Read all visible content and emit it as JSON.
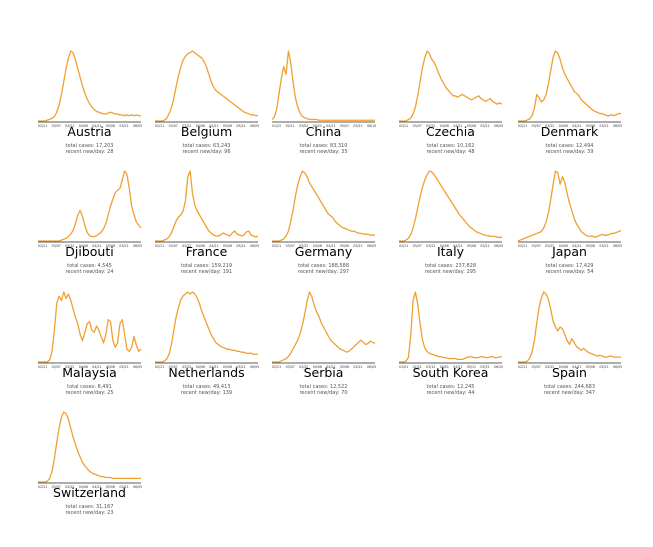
{
  "accent_color": "#f0a030",
  "chart_data": [
    {
      "type": "line",
      "title": "Austria",
      "total_cases_text": "total cases: 17,203",
      "recent_text": "recent new/day: 28",
      "x_ticks": [
        "02/21",
        "03/07",
        "03/22",
        "04/06",
        "04/21",
        "05/06",
        "05/21",
        "06/05"
      ],
      "values": [
        0,
        0,
        0,
        0,
        1,
        2,
        3,
        5,
        10,
        18,
        30,
        45,
        60,
        72,
        80,
        78,
        70,
        60,
        50,
        40,
        32,
        25,
        20,
        16,
        13,
        11,
        10,
        9,
        8,
        8,
        9,
        10,
        9,
        8,
        8,
        7,
        7,
        6,
        7,
        6,
        7,
        6,
        7,
        6,
        6
      ]
    },
    {
      "type": "line",
      "title": "Belgium",
      "total_cases_text": "total cases: 63,243",
      "recent_text": "recent new/day: 96",
      "x_ticks": [
        "02/21",
        "03/07",
        "03/22",
        "04/06",
        "04/21",
        "05/06",
        "05/21",
        "06/05"
      ],
      "values": [
        0,
        0,
        0,
        0,
        1,
        3,
        8,
        15,
        25,
        38,
        50,
        60,
        68,
        72,
        75,
        76,
        78,
        76,
        74,
        72,
        70,
        66,
        60,
        52,
        44,
        38,
        34,
        32,
        30,
        28,
        26,
        24,
        22,
        20,
        18,
        16,
        14,
        12,
        10,
        9,
        8,
        7,
        7,
        6,
        6
      ]
    },
    {
      "type": "line",
      "title": "China",
      "total_cases_text": "total cases: 83,310",
      "recent_text": "recent new/day: 35",
      "x_ticks": [
        "01/22",
        "02/11",
        "03/02",
        "03/22",
        "04/11",
        "05/01",
        "05/21",
        "06/10"
      ],
      "values": [
        2,
        5,
        15,
        35,
        55,
        70,
        60,
        90,
        75,
        50,
        30,
        18,
        10,
        6,
        4,
        3,
        2,
        2,
        2,
        2,
        1,
        1,
        1,
        1,
        1,
        1,
        1,
        1,
        1,
        1,
        1,
        1,
        1,
        1,
        1,
        1,
        1,
        1,
        1,
        1,
        1,
        1,
        1,
        1,
        1
      ]
    },
    {
      "type": "line",
      "title": "Czechia",
      "total_cases_text": "total cases: 10,162",
      "recent_text": "recent new/day: 48",
      "x_ticks": [
        "02/21",
        "03/07",
        "03/22",
        "04/06",
        "04/21",
        "05/06",
        "05/21",
        "06/05"
      ],
      "values": [
        0,
        0,
        0,
        0,
        1,
        2,
        5,
        10,
        18,
        28,
        38,
        45,
        50,
        48,
        44,
        42,
        38,
        34,
        30,
        27,
        24,
        22,
        20,
        18,
        18,
        17,
        18,
        19,
        18,
        17,
        16,
        15,
        16,
        17,
        18,
        16,
        15,
        14,
        15,
        16,
        14,
        13,
        12,
        13,
        12
      ]
    },
    {
      "type": "line",
      "title": "Denmark",
      "total_cases_text": "total cases: 12,494",
      "recent_text": "recent new/day: 39",
      "x_ticks": [
        "02/21",
        "03/07",
        "03/22",
        "04/06",
        "04/21",
        "05/06",
        "05/21",
        "06/05"
      ],
      "values": [
        0,
        0,
        0,
        0,
        1,
        2,
        5,
        12,
        25,
        22,
        18,
        20,
        25,
        35,
        48,
        60,
        66,
        64,
        58,
        50,
        44,
        40,
        36,
        32,
        28,
        26,
        24,
        20,
        18,
        16,
        14,
        12,
        10,
        9,
        8,
        7,
        7,
        6,
        5,
        5,
        6,
        5,
        6,
        7,
        7
      ]
    },
    {
      "type": "line",
      "title": "Djibouti",
      "total_cases_text": "total cases: 4,545",
      "recent_text": "recent new/day: 24",
      "x_ticks": [
        "02/21",
        "03/07",
        "03/22",
        "04/06",
        "04/21",
        "05/06",
        "05/21",
        "06/05"
      ],
      "values": [
        0,
        0,
        0,
        0,
        0,
        0,
        0,
        0,
        0,
        0,
        1,
        2,
        3,
        5,
        8,
        12,
        20,
        30,
        35,
        28,
        18,
        10,
        6,
        5,
        5,
        6,
        8,
        10,
        14,
        20,
        30,
        40,
        48,
        55,
        58,
        60,
        70,
        80,
        76,
        60,
        40,
        30,
        22,
        18,
        15
      ]
    },
    {
      "type": "line",
      "title": "France",
      "total_cases_text": "total cases: 159,219",
      "recent_text": "recent new/day: 191",
      "x_ticks": [
        "02/21",
        "03/07",
        "03/22",
        "04/06",
        "04/21",
        "05/06",
        "05/21",
        "06/05"
      ],
      "values": [
        0,
        0,
        0,
        0,
        1,
        2,
        4,
        8,
        14,
        20,
        24,
        26,
        30,
        40,
        64,
        70,
        48,
        36,
        30,
        26,
        22,
        18,
        14,
        10,
        8,
        6,
        5,
        5,
        6,
        8,
        7,
        6,
        5,
        8,
        10,
        7,
        6,
        5,
        6,
        9,
        10,
        6,
        5,
        4,
        5
      ]
    },
    {
      "type": "line",
      "title": "Germany",
      "total_cases_text": "total cases: 188,588",
      "recent_text": "recent new/day: 297",
      "x_ticks": [
        "02/21",
        "03/07",
        "03/22",
        "04/06",
        "04/21",
        "05/06",
        "05/21",
        "06/05"
      ],
      "values": [
        0,
        0,
        0,
        0,
        1,
        2,
        5,
        10,
        20,
        32,
        46,
        58,
        66,
        72,
        70,
        66,
        60,
        56,
        52,
        48,
        44,
        40,
        36,
        32,
        28,
        26,
        24,
        20,
        18,
        16,
        14,
        13,
        12,
        11,
        10,
        10,
        9,
        8,
        8,
        7,
        7,
        7,
        6,
        6,
        6
      ]
    },
    {
      "type": "line",
      "title": "Italy",
      "total_cases_text": "total cases: 237,828",
      "recent_text": "recent new/day: 295",
      "x_ticks": [
        "02/21",
        "03/07",
        "03/22",
        "04/06",
        "04/21",
        "05/06",
        "05/21",
        "06/05"
      ],
      "values": [
        0,
        0,
        0,
        1,
        3,
        7,
        14,
        24,
        36,
        48,
        58,
        66,
        72,
        76,
        75,
        72,
        68,
        64,
        60,
        56,
        52,
        48,
        44,
        40,
        36,
        32,
        28,
        25,
        22,
        19,
        16,
        14,
        12,
        10,
        9,
        8,
        7,
        6,
        6,
        5,
        5,
        5,
        4,
        4,
        4
      ]
    },
    {
      "type": "line",
      "title": "Japan",
      "total_cases_text": "total cases: 17,429",
      "recent_text": "recent new/day: 54",
      "x_ticks": [
        "02/21",
        "03/07",
        "03/22",
        "04/06",
        "04/21",
        "05/06",
        "05/21",
        "06/05"
      ],
      "values": [
        0,
        1,
        2,
        3,
        4,
        5,
        6,
        7,
        8,
        9,
        10,
        14,
        20,
        30,
        44,
        60,
        74,
        72,
        60,
        68,
        62,
        50,
        40,
        32,
        24,
        18,
        14,
        10,
        8,
        6,
        5,
        5,
        5,
        4,
        5,
        6,
        7,
        6,
        6,
        7,
        8,
        8,
        9,
        10,
        11
      ]
    },
    {
      "type": "line",
      "title": "Malaysia",
      "total_cases_text": "total cases: 8,491",
      "recent_text": "recent new/day: 25",
      "x_ticks": [
        "02/21",
        "03/07",
        "03/22",
        "04/06",
        "04/21",
        "05/06",
        "05/21",
        "06/05"
      ],
      "values": [
        0,
        0,
        0,
        0,
        0,
        2,
        10,
        30,
        55,
        62,
        58,
        66,
        60,
        64,
        58,
        50,
        42,
        36,
        26,
        20,
        28,
        36,
        38,
        30,
        28,
        34,
        30,
        24,
        18,
        26,
        40,
        38,
        20,
        14,
        18,
        36,
        40,
        26,
        12,
        10,
        14,
        24,
        16,
        10,
        12
      ]
    },
    {
      "type": "line",
      "title": "Netherlands",
      "total_cases_text": "total cases: 49,413",
      "recent_text": "recent new/day: 139",
      "x_ticks": [
        "02/21",
        "03/07",
        "03/22",
        "04/06",
        "04/21",
        "05/06",
        "05/21",
        "06/05"
      ],
      "values": [
        0,
        0,
        0,
        0,
        1,
        3,
        8,
        18,
        32,
        46,
        56,
        64,
        68,
        70,
        72,
        70,
        72,
        70,
        66,
        60,
        52,
        46,
        40,
        34,
        28,
        24,
        20,
        18,
        16,
        15,
        14,
        13,
        13,
        12,
        12,
        11,
        11,
        10,
        10,
        9,
        9,
        9,
        8,
        8,
        8
      ]
    },
    {
      "type": "line",
      "title": "Serbia",
      "total_cases_text": "total cases: 12,522",
      "recent_text": "recent new/day: 70",
      "x_ticks": [
        "02/21",
        "03/07",
        "03/22",
        "04/06",
        "04/21",
        "05/06",
        "05/21",
        "06/05"
      ],
      "values": [
        0,
        0,
        0,
        0,
        1,
        2,
        3,
        5,
        8,
        12,
        16,
        20,
        26,
        34,
        44,
        56,
        64,
        60,
        52,
        46,
        42,
        36,
        32,
        28,
        24,
        20,
        18,
        16,
        14,
        12,
        11,
        10,
        9,
        10,
        12,
        14,
        16,
        18,
        20,
        18,
        16,
        17,
        19,
        18,
        17
      ]
    },
    {
      "type": "line",
      "title": "South Korea",
      "total_cases_text": "total cases: 12,245",
      "recent_text": "recent new/day: 44",
      "x_ticks": [
        "01/01",
        "02/21",
        "03/12",
        "04/01",
        "04/21",
        "05/11",
        "05/31",
        "06/20"
      ],
      "values": [
        0,
        0,
        0,
        1,
        5,
        30,
        70,
        80,
        66,
        44,
        26,
        16,
        12,
        10,
        9,
        8,
        7,
        6,
        6,
        5,
        5,
        4,
        4,
        4,
        4,
        3,
        3,
        3,
        4,
        5,
        6,
        6,
        5,
        5,
        5,
        6,
        6,
        5,
        5,
        6,
        6,
        5,
        5,
        6,
        6
      ]
    },
    {
      "type": "line",
      "title": "Spain",
      "total_cases_text": "total cases: 244,683",
      "recent_text": "recent new/day: 347",
      "x_ticks": [
        "02/21",
        "03/07",
        "03/22",
        "04/06",
        "04/21",
        "05/06",
        "05/21",
        "06/05"
      ],
      "values": [
        0,
        0,
        0,
        0,
        1,
        4,
        10,
        22,
        40,
        56,
        66,
        72,
        70,
        64,
        54,
        42,
        36,
        32,
        36,
        34,
        28,
        22,
        18,
        24,
        20,
        16,
        14,
        12,
        14,
        12,
        10,
        9,
        8,
        7,
        6,
        7,
        6,
        5,
        5,
        6,
        6,
        5,
        5,
        5,
        5
      ]
    },
    {
      "type": "line",
      "title": "Switzerland",
      "total_cases_text": "total cases: 31,167",
      "recent_text": "recent new/day: 23",
      "x_ticks": [
        "02/21",
        "03/07",
        "03/22",
        "04/06",
        "04/21",
        "05/06",
        "05/21",
        "06/05"
      ],
      "values": [
        0,
        0,
        0,
        0,
        1,
        4,
        12,
        26,
        44,
        60,
        72,
        78,
        76,
        70,
        60,
        50,
        42,
        34,
        28,
        22,
        18,
        15,
        12,
        10,
        9,
        8,
        7,
        6,
        6,
        5,
        5,
        5,
        4,
        4,
        4,
        4,
        4,
        4,
        4,
        4,
        4,
        4,
        4,
        4,
        4
      ]
    }
  ]
}
